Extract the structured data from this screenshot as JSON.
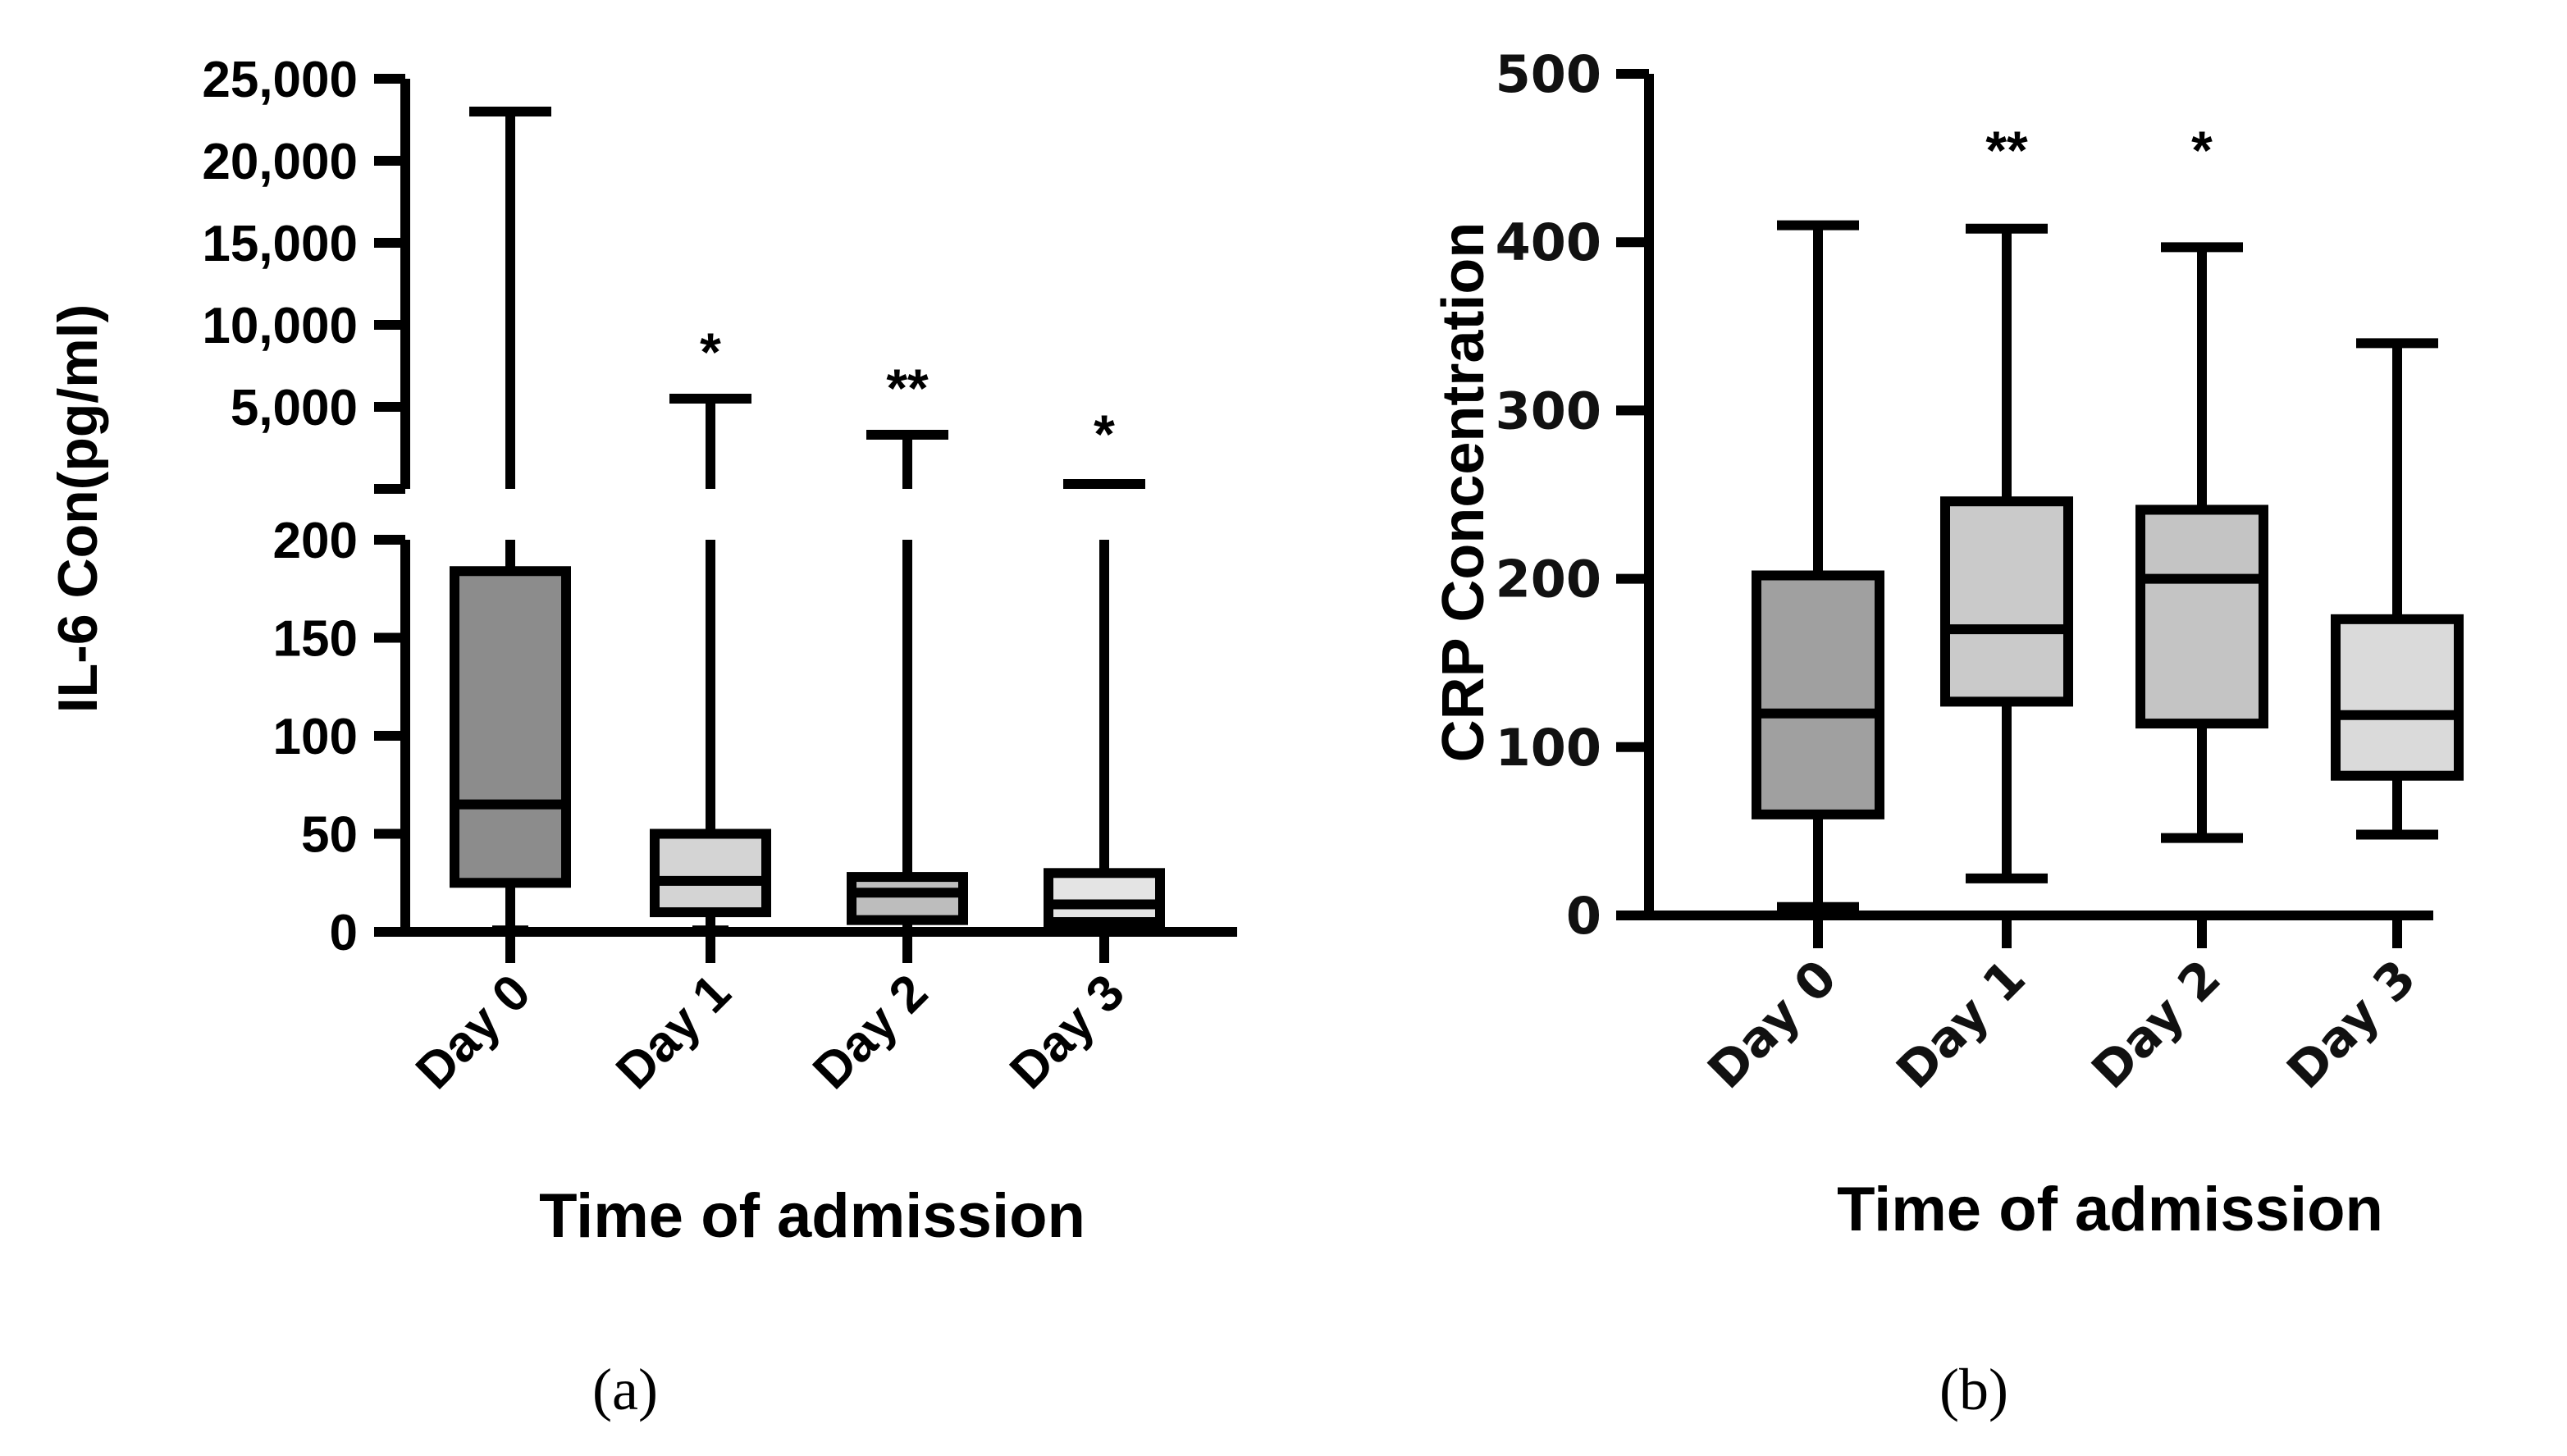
{
  "chart_data": [
    {
      "id": "a",
      "type": "box",
      "panel_label": "(a)",
      "categories": [
        "Day 0",
        "Day 1",
        "Day 2",
        "Day 3"
      ],
      "ylabel": "IL-6 Con(pg/ml)",
      "xlabel": "Time of admission",
      "y_axis": {
        "lower_segment": {
          "range": [
            0,
            200
          ],
          "ticks": [
            "0",
            "50",
            "100",
            "150",
            "200"
          ],
          "tick_values": [
            0,
            50,
            100,
            150,
            200
          ]
        },
        "upper_segment": {
          "range": [
            0,
            25000
          ],
          "ticks": [
            "5,000",
            "10,000",
            "15,000",
            "20,000",
            "25,000"
          ],
          "tick_values": [
            5000,
            10000,
            15000,
            20000,
            25000
          ]
        }
      },
      "colors": [
        "#8c8c8c",
        "#d4d4d4",
        "#bdbdbd",
        "#e4e4e4"
      ],
      "boxes": [
        {
          "category": "Day 0",
          "min": 2,
          "q1": 25,
          "median": 65,
          "q3": 184,
          "max": 23000,
          "significance": ""
        },
        {
          "category": "Day 1",
          "min": 2,
          "q1": 10,
          "median": 26,
          "q3": 50,
          "max": 5500,
          "significance": "*"
        },
        {
          "category": "Day 2",
          "min": 1,
          "q1": 6,
          "median": 20,
          "q3": 28,
          "max": 3300,
          "significance": "**"
        },
        {
          "category": "Day 3",
          "min": 1,
          "q1": 5,
          "median": 14,
          "q3": 30,
          "max": 200,
          "outlier_cap": 200,
          "significance": "*"
        }
      ]
    },
    {
      "id": "b",
      "type": "box",
      "panel_label": "(b)",
      "categories": [
        "Day 0",
        "Day 1",
        "Day 2",
        "Day 3"
      ],
      "ylabel": "CRP Concentration",
      "xlabel": "Time of admission",
      "ylim": [
        0,
        500
      ],
      "ticks": [
        "0",
        "100",
        "200",
        "300",
        "400",
        "500"
      ],
      "tick_values": [
        0,
        100,
        200,
        300,
        400,
        500
      ],
      "colors": [
        "#a0a0a0",
        "#cacaca",
        "#c4c4c4",
        "#dadada"
      ],
      "boxes": [
        {
          "category": "Day 0",
          "min": 5,
          "q1": 60,
          "median": 120,
          "q3": 202,
          "max": 410,
          "significance": ""
        },
        {
          "category": "Day 1",
          "min": 22,
          "q1": 127,
          "median": 170,
          "q3": 246,
          "max": 408,
          "significance": "**"
        },
        {
          "category": "Day 2",
          "min": 46,
          "q1": 114,
          "median": 200,
          "q3": 241,
          "max": 397,
          "significance": "*"
        },
        {
          "category": "Day 3",
          "min": 48,
          "q1": 83,
          "median": 119,
          "q3": 176,
          "max": 340,
          "significance": ""
        }
      ]
    }
  ]
}
